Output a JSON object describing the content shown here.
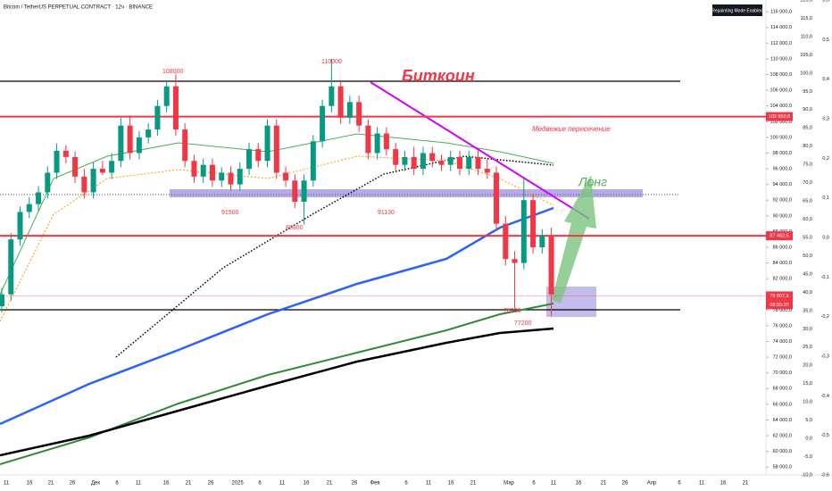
{
  "chart_data": {
    "type": "candlestick",
    "title": "Bitcoin / TetherUS PERPETUAL CONTRACT · 12ч · BINANCE",
    "badge": "Repainting Mode Enabled",
    "up_color": "#089981",
    "down_color": "#f23645",
    "open": [
      78500,
      80000,
      87000,
      90500,
      91500,
      93000,
      95500,
      98300,
      97500,
      95000,
      93000,
      96000,
      95500,
      97000,
      101500,
      98000,
      100000,
      101000,
      104000,
      106500,
      101000,
      97000,
      95000,
      96500,
      94500,
      95500,
      94000,
      96000,
      98500,
      97000,
      101500,
      95500,
      94500,
      91800,
      94500,
      99500,
      104000,
      106500,
      102500,
      104500,
      101500,
      98000,
      100500,
      98500,
      96500,
      97500,
      96000,
      98000,
      97000,
      96500,
      97500,
      96000,
      97500,
      96000,
      95500,
      89000,
      84500,
      84000,
      92000,
      86000,
      87500
    ],
    "high": [
      80800,
      87800,
      91200,
      92400,
      93800,
      96300,
      99200,
      99000,
      98200,
      96000,
      96800,
      97000,
      98000,
      102500,
      102800,
      100800,
      101800,
      104800,
      107300,
      108000,
      101800,
      97800,
      97300,
      97300,
      96200,
      96300,
      96800,
      99300,
      99300,
      102300,
      102300,
      96300,
      95300,
      95300,
      100300,
      104800,
      110000,
      107300,
      105300,
      105300,
      102300,
      101300,
      101300,
      99300,
      98300,
      98800,
      98800,
      98800,
      97800,
      98300,
      98300,
      98300,
      98300,
      97300,
      96300,
      90000,
      85500,
      95000,
      92800,
      88300,
      88500
    ],
    "low": [
      77700,
      79200,
      86200,
      89700,
      90700,
      92200,
      94700,
      96700,
      94200,
      92200,
      92200,
      95200,
      94700,
      96200,
      97200,
      97200,
      99200,
      100200,
      103200,
      100200,
      96200,
      94200,
      94200,
      93700,
      93700,
      93200,
      93200,
      95200,
      96200,
      96200,
      94700,
      93700,
      91000,
      88900,
      93700,
      98700,
      103200,
      101700,
      101700,
      100700,
      97200,
      97200,
      97700,
      95700,
      95700,
      95200,
      95200,
      96200,
      95700,
      95700,
      95200,
      95200,
      95200,
      94700,
      88200,
      83700,
      78200,
      83200,
      85200,
      85200,
      77200
    ],
    "close": [
      80000,
      87000,
      90500,
      91500,
      93000,
      95500,
      98300,
      97500,
      95000,
      93000,
      96000,
      95500,
      97000,
      101500,
      98000,
      100000,
      101000,
      104000,
      106500,
      101000,
      97000,
      95000,
      96500,
      94500,
      95500,
      94000,
      96000,
      98500,
      97000,
      101500,
      95500,
      94500,
      91800,
      94500,
      99500,
      104000,
      106500,
      102500,
      104500,
      101500,
      98000,
      100500,
      98500,
      96500,
      97500,
      96000,
      98000,
      97000,
      96500,
      97500,
      96000,
      97500,
      96000,
      95500,
      89000,
      84500,
      84000,
      92000,
      86000,
      87500,
      80000
    ],
    "ylim": [
      57000,
      117500
    ],
    "yticks": [
      {
        "value": 116000,
        "label": "116 000,0"
      },
      {
        "value": 114000,
        "label": "114 000,0"
      },
      {
        "value": 112000,
        "label": "112 000,0"
      },
      {
        "value": 110000,
        "label": "110 000,0"
      },
      {
        "value": 108000,
        "label": "108 000,0"
      },
      {
        "value": 106000,
        "label": "106 000,0"
      },
      {
        "value": 104000,
        "label": "104 000,0"
      },
      {
        "value": 102000,
        "label": "102 000,0"
      },
      {
        "value": 100000,
        "label": "100 000,0"
      },
      {
        "value": 98000,
        "label": "98 000,0"
      },
      {
        "value": 96000,
        "label": "96 000,0"
      },
      {
        "value": 94000,
        "label": "94 000,0"
      },
      {
        "value": 92000,
        "label": "92 000,0"
      },
      {
        "value": 90000,
        "label": "90 000,0"
      },
      {
        "value": 88000,
        "label": "88 000,0"
      },
      {
        "value": 86000,
        "label": "86 000,0"
      },
      {
        "value": 84000,
        "label": "84 000,0"
      },
      {
        "value": 82000,
        "label": "82 000,0"
      },
      {
        "value": 80000,
        "label": "80 000,0"
      },
      {
        "value": 78000,
        "label": "78 000,0"
      },
      {
        "value": 76000,
        "label": "76 000,0"
      },
      {
        "value": 74000,
        "label": "74 000,0"
      },
      {
        "value": 72000,
        "label": "72 000,0"
      },
      {
        "value": 70000,
        "label": "70 000,0"
      },
      {
        "value": 68000,
        "label": "68 000,0"
      },
      {
        "value": 66000,
        "label": "66 000,0"
      },
      {
        "value": 64000,
        "label": "64 000,0"
      },
      {
        "value": 62000,
        "label": "62 000,0"
      },
      {
        "value": 60000,
        "label": "60 000,0"
      },
      {
        "value": 58000,
        "label": "58 000,0"
      }
    ],
    "y2lim": [
      -10,
      120
    ],
    "y2ticks": [
      {
        "value": 120,
        "label": "120,0"
      },
      {
        "value": 115,
        "label": "115,0"
      },
      {
        "value": 110,
        "label": "110,0"
      },
      {
        "value": 105,
        "label": "105,0"
      },
      {
        "value": 100,
        "label": "100,0"
      },
      {
        "value": 95,
        "label": "95,0"
      },
      {
        "value": 90,
        "label": "90,0"
      },
      {
        "value": 85,
        "label": "85,0"
      },
      {
        "value": 80,
        "label": "80,0"
      },
      {
        "value": 75,
        "label": "75,0"
      },
      {
        "value": 70,
        "label": "70,0"
      },
      {
        "value": 65,
        "label": "65,0"
      },
      {
        "value": 60,
        "label": "60,0"
      },
      {
        "value": 55,
        "label": "55,0"
      },
      {
        "value": 50,
        "label": "50,0"
      },
      {
        "value": 45,
        "label": "45,0"
      },
      {
        "value": 40,
        "label": "40,0"
      },
      {
        "value": 35,
        "label": "35,0"
      },
      {
        "value": 30,
        "label": "30,0"
      },
      {
        "value": 25,
        "label": "25,0"
      },
      {
        "value": 20,
        "label": "20,0"
      },
      {
        "value": 15,
        "label": "15,0"
      },
      {
        "value": 10,
        "label": "10,0"
      },
      {
        "value": 5,
        "label": "5,0"
      },
      {
        "value": 0,
        "label": "0,0"
      },
      {
        "value": -5,
        "label": "-5,0"
      },
      {
        "value": -10,
        "label": "-10,0"
      }
    ],
    "y3lim": [
      -0.6,
      0.6
    ],
    "y3ticks": [
      {
        "value": 0.6,
        "label": "0,6"
      },
      {
        "value": 0.5,
        "label": "0,5"
      },
      {
        "value": 0.4,
        "label": "0,4"
      },
      {
        "value": 0.3,
        "label": "0,3"
      },
      {
        "value": 0.2,
        "label": "0,2"
      },
      {
        "value": 0.1,
        "label": "0,1"
      },
      {
        "value": 0,
        "label": "0,0"
      },
      {
        "value": -0.1,
        "label": "-0,1"
      },
      {
        "value": -0.2,
        "label": "-0,2"
      },
      {
        "value": -0.3,
        "label": "-0,3"
      },
      {
        "value": -0.4,
        "label": "-0,4"
      },
      {
        "value": -0.5,
        "label": "-0,5"
      },
      {
        "value": -0.6,
        "label": "-0,6"
      }
    ],
    "xticklabels": [
      "11",
      "16",
      "21",
      "26",
      "Дек",
      "6",
      "11",
      "16",
      "21",
      "26",
      "2025",
      "6",
      "11",
      "16",
      "21",
      "26",
      "Фев",
      "6",
      "11",
      "16",
      "21",
      "Мар",
      "6",
      "11",
      "16",
      "21",
      "26",
      "Апр",
      "6",
      "11",
      "16",
      "21"
    ],
    "price_labels": [
      {
        "value": 102650.8,
        "label": "102 650,8",
        "color": "#f23645"
      },
      {
        "value": 87462.5,
        "label": "87 462,5",
        "color": "#f23645"
      },
      {
        "value": 79807.5,
        "label": "79 807,5",
        "color": "#f23645"
      }
    ],
    "countdown": "08:55:20",
    "annotations": [
      "Биткоин",
      "Лонг",
      "Медвежье пересечение",
      "108000",
      "110000",
      "91500",
      "88900",
      "91130",
      "78200",
      "77200"
    ]
  }
}
